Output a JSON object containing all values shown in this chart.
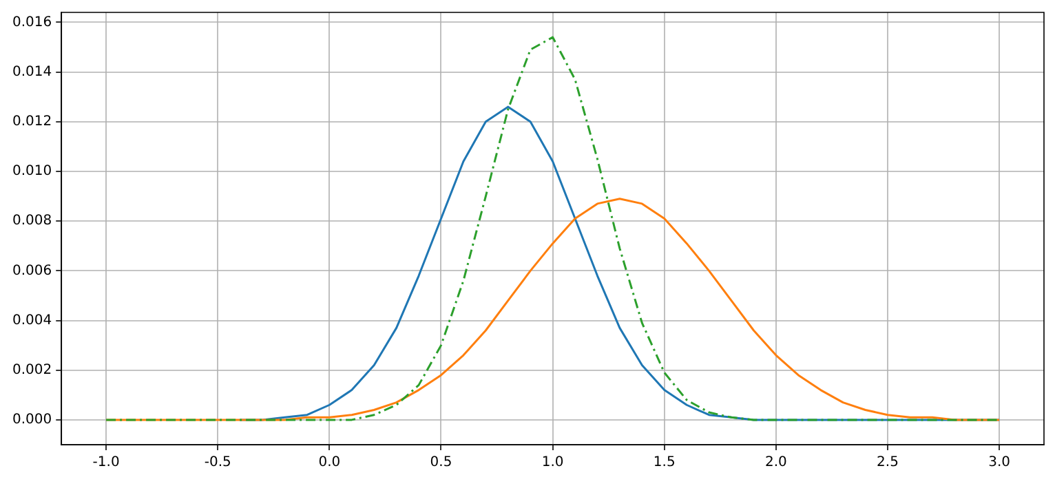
{
  "chart_data": {
    "type": "line",
    "x": [
      -1.0,
      -0.9,
      -0.8,
      -0.7,
      -0.6,
      -0.5,
      -0.4,
      -0.3,
      -0.2,
      -0.1,
      0.0,
      0.1,
      0.2,
      0.3,
      0.4,
      0.5,
      0.6,
      0.7,
      0.8,
      0.9,
      1.0,
      1.1,
      1.2,
      1.3,
      1.4,
      1.5,
      1.6,
      1.7,
      1.8,
      1.9,
      2.0,
      2.1,
      2.2,
      2.3,
      2.4,
      2.5,
      2.6,
      2.7,
      2.8,
      2.9,
      3.0
    ],
    "series": [
      {
        "color": "#1f77b4",
        "values": [
          null,
          null,
          null,
          null,
          null,
          null,
          0,
          0,
          0.0001,
          0.0002,
          0.0006,
          0.0012,
          0.0022,
          0.0037,
          0.0058,
          0.0081,
          0.0104,
          0.012,
          0.0126,
          0.012,
          0.0104,
          0.0081,
          0.0058,
          0.0037,
          0.0022,
          0.0012,
          0.0006,
          0.0002,
          0.0001,
          0,
          0,
          0,
          0,
          0,
          0,
          0,
          0,
          0,
          0,
          0,
          0
        ]
      },
      {
        "color": "#ff7f0e",
        "values": [
          0,
          0,
          0,
          0,
          0,
          0,
          0,
          0,
          0,
          0.0001,
          0.0001,
          0.0002,
          0.0004,
          0.0007,
          0.0012,
          0.0018,
          0.0026,
          0.0036,
          0.0048,
          0.006,
          0.0071,
          0.0081,
          0.0087,
          0.0089,
          0.0087,
          0.0081,
          0.0071,
          0.006,
          0.0048,
          0.0036,
          0.0026,
          0.0018,
          0.0012,
          0.0007,
          0.0004,
          0.0002,
          0.0001,
          0.0001,
          0,
          0,
          0
        ]
      },
      {
        "color": "#2ca02c",
        "line_style": "dashed",
        "values": [
          0,
          0,
          0,
          0,
          0,
          0,
          0,
          0,
          0,
          0,
          0,
          0,
          0.0002,
          0.0006,
          0.0014,
          0.003,
          0.0056,
          0.009,
          0.0125,
          0.0149,
          0.0154,
          0.0137,
          0.0105,
          0.0069,
          0.0039,
          0.0019,
          0.0008,
          0.0003,
          0.0001,
          0,
          0,
          0,
          0,
          0,
          0,
          0,
          0,
          0,
          0,
          0,
          0
        ]
      }
    ],
    "xlim": [
      -1.2,
      3.2
    ],
    "xticks": [
      {
        "value": -1,
        "label": "-1.0"
      },
      {
        "value": -0.5,
        "label": "-0.5"
      },
      {
        "value": 0,
        "label": "0.0"
      },
      {
        "value": 0.5,
        "label": "0.5"
      },
      {
        "value": 1,
        "label": "1.0"
      },
      {
        "value": 1.5,
        "label": "1.5"
      },
      {
        "value": 2,
        "label": "2.0"
      },
      {
        "value": 2.5,
        "label": "2.5"
      },
      {
        "value": 3,
        "label": "3.0"
      }
    ],
    "ylim": [
      -0.001,
      0.0164
    ],
    "yticks": [
      {
        "value": 0,
        "label": "0.000"
      },
      {
        "value": 0.002,
        "label": "0.002"
      },
      {
        "value": 0.004,
        "label": "0.004"
      },
      {
        "value": 0.006,
        "label": "0.006"
      },
      {
        "value": 0.008,
        "label": "0.008"
      },
      {
        "value": 0.01,
        "label": "0.010"
      },
      {
        "value": 0.012,
        "label": "0.012"
      },
      {
        "value": 0.014,
        "label": "0.014"
      },
      {
        "value": 0.016,
        "label": "0.016"
      }
    ],
    "grid": true,
    "marker": "none",
    "line_style": "solid",
    "legend": false
  }
}
